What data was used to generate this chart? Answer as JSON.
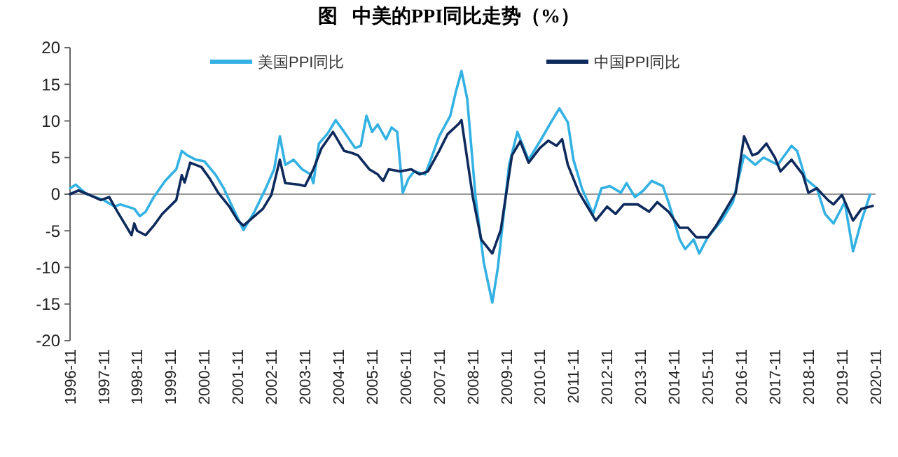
{
  "chart_data": {
    "type": "line",
    "title": "图   中美的PPI同比走势（%）",
    "xlim": [
      "1996-11",
      "2020-11"
    ],
    "xticks": [
      "1996-11",
      "1997-11",
      "1998-11",
      "1999-11",
      "2000-11",
      "2001-11",
      "2002-11",
      "2003-11",
      "2004-11",
      "2005-11",
      "2006-11",
      "2007-11",
      "2008-11",
      "2009-11",
      "2010-11",
      "2011-11",
      "2012-11",
      "2013-11",
      "2014-11",
      "2015-11",
      "2016-11",
      "2017-11",
      "2018-11",
      "2019-11",
      "2020-11"
    ],
    "ylim": [
      -20,
      20
    ],
    "yticks": [
      -20,
      -15,
      -10,
      -5,
      0,
      5,
      10,
      15,
      20
    ],
    "legend": "top",
    "ref_lines": [
      {
        "axis": "y",
        "value": 0,
        "color": "#999999"
      }
    ],
    "marker": "none",
    "line_style": "solid",
    "series": [
      {
        "name": "美国PPI同比",
        "color": "#33b1e3",
        "x": [
          "1996-11",
          "1997-01",
          "1997-05",
          "1997-11",
          "1998-03",
          "1998-05",
          "1998-10",
          "1998-12",
          "1999-02",
          "1999-05",
          "1999-09",
          "2000-01",
          "2000-03",
          "2000-05",
          "2000-08",
          "2000-11",
          "2001-03",
          "2001-06",
          "2001-09",
          "2002-01",
          "2002-05",
          "2002-09",
          "2002-12",
          "2003-02",
          "2003-04",
          "2003-07",
          "2003-10",
          "2004-01",
          "2004-02",
          "2004-04",
          "2004-07",
          "2004-10",
          "2005-01",
          "2005-05",
          "2005-07",
          "2005-09",
          "2005-11",
          "2006-01",
          "2006-04",
          "2006-06",
          "2006-08",
          "2006-10",
          "2006-12",
          "2007-02",
          "2007-06",
          "2007-08",
          "2007-11",
          "2008-03",
          "2008-05",
          "2008-07",
          "2008-09",
          "2008-12",
          "2009-03",
          "2009-06",
          "2009-08",
          "2009-12",
          "2010-03",
          "2010-07",
          "2010-11",
          "2011-03",
          "2011-06",
          "2011-09",
          "2011-11",
          "2012-02",
          "2012-06",
          "2012-09",
          "2012-12",
          "2013-04",
          "2013-06",
          "2013-09",
          "2013-12",
          "2014-03",
          "2014-07",
          "2014-09",
          "2015-01",
          "2015-03",
          "2015-06",
          "2015-08",
          "2015-11",
          "2016-04",
          "2016-08",
          "2016-12",
          "2017-04",
          "2017-07",
          "2017-12",
          "2018-05",
          "2018-07",
          "2018-10",
          "2019-02",
          "2019-05",
          "2019-08",
          "2019-12",
          "2020-03",
          "2020-06",
          "2020-09"
        ],
        "values": [
          0.8,
          1.3,
          0,
          -0.8,
          -1.7,
          -1.4,
          -2,
          -3,
          -2.4,
          -0.4,
          1.8,
          3.4,
          5.9,
          5.3,
          4.7,
          4.5,
          2.7,
          0.8,
          -1.7,
          -4.9,
          -2.4,
          0.8,
          3.4,
          7.9,
          4,
          4.7,
          3.4,
          2.7,
          1.5,
          6.9,
          8.2,
          10.1,
          8.5,
          6.3,
          6.6,
          10.7,
          8.5,
          9.5,
          7.5,
          9.1,
          8.5,
          0.2,
          2.1,
          3.1,
          2.7,
          4.7,
          7.9,
          10.7,
          14,
          16.8,
          13,
          -0.4,
          -9.4,
          -14.8,
          -10,
          4,
          8.5,
          4.7,
          7.2,
          9.8,
          11.7,
          9.8,
          4.7,
          0.8,
          -2.7,
          0.8,
          1.1,
          0.2,
          1.5,
          -0.4,
          0.5,
          1.8,
          1.1,
          -1.1,
          -6.2,
          -7.5,
          -6.2,
          -8.1,
          -5.9,
          -3.6,
          -1.1,
          5.3,
          4,
          5,
          4,
          6.6,
          5.9,
          2.1,
          0.8,
          -2.7,
          -4,
          -1.1,
          -7.8,
          -3.6,
          -0.1
        ]
      },
      {
        "name": "中国PPI同比",
        "color": "#0e2a5c",
        "x": [
          "1996-11",
          "1997-02",
          "1997-06",
          "1997-10",
          "1998-01",
          "1998-04",
          "1998-07",
          "1998-09",
          "1998-10",
          "1998-11",
          "1999-02",
          "1999-05",
          "1999-08",
          "2000-01",
          "2000-03",
          "2000-04",
          "2000-06",
          "2000-10",
          "2001-01",
          "2001-04",
          "2001-08",
          "2001-11",
          "2002-01",
          "2002-05",
          "2002-08",
          "2002-11",
          "2003-02",
          "2003-04",
          "2003-09",
          "2003-11",
          "2004-02",
          "2004-05",
          "2004-09",
          "2005-01",
          "2005-04",
          "2005-06",
          "2005-10",
          "2006-01",
          "2006-03",
          "2006-05",
          "2006-09",
          "2007-01",
          "2007-04",
          "2007-07",
          "2007-11",
          "2008-02",
          "2008-06",
          "2008-07",
          "2008-11",
          "2009-02",
          "2009-06",
          "2009-09",
          "2010-01",
          "2010-04",
          "2010-07",
          "2010-11",
          "2011-02",
          "2011-05",
          "2011-07",
          "2011-09",
          "2012-01",
          "2012-04",
          "2012-07",
          "2012-11",
          "2013-02",
          "2013-05",
          "2013-10",
          "2014-02",
          "2014-05",
          "2014-09",
          "2015-01",
          "2015-04",
          "2015-07",
          "2015-11",
          "2016-02",
          "2016-05",
          "2016-09",
          "2016-12",
          "2017-03",
          "2017-05",
          "2017-08",
          "2017-11",
          "2018-01",
          "2018-05",
          "2018-09",
          "2018-11",
          "2019-02",
          "2019-06",
          "2019-08",
          "2019-11",
          "2020-03",
          "2020-06",
          "2020-10"
        ],
        "values": [
          0,
          0.5,
          -0.1,
          -0.8,
          -0.4,
          -2.4,
          -4.3,
          -5.6,
          -4,
          -5,
          -5.6,
          -4.3,
          -2.7,
          -0.8,
          2.6,
          1.6,
          4.3,
          3.7,
          2.1,
          0.2,
          -1.7,
          -3.6,
          -4.3,
          -3,
          -2,
          -0.1,
          4.7,
          1.5,
          1.3,
          1.1,
          3.4,
          6.3,
          8.5,
          5.9,
          5.6,
          5.3,
          3.4,
          2.7,
          1.8,
          3.4,
          3.1,
          3.4,
          2.7,
          3.1,
          5.9,
          8.2,
          9.6,
          10.1,
          -0.4,
          -6.2,
          -8.1,
          -4.9,
          5.3,
          7.2,
          4.3,
          6.3,
          7.3,
          6.6,
          7.5,
          4,
          0.2,
          -1.7,
          -3.6,
          -1.7,
          -2.7,
          -1.4,
          -1.4,
          -2.4,
          -1.1,
          -2.4,
          -4.6,
          -4.6,
          -5.9,
          -5.9,
          -4.3,
          -2.4,
          0.2,
          7.9,
          5.3,
          5.6,
          6.9,
          5,
          3.1,
          4.7,
          2.7,
          0.2,
          0.8,
          -0.8,
          -1.4,
          -0.1,
          -3.6,
          -2,
          -1.6
        ]
      }
    ]
  }
}
